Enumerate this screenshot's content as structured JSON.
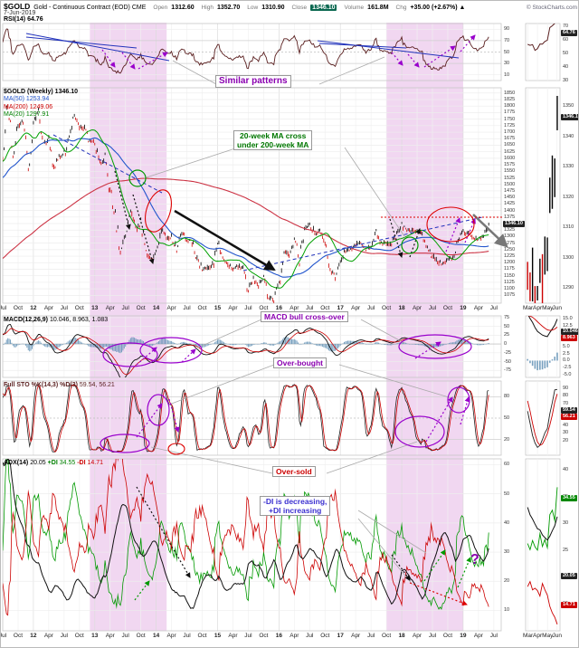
{
  "header": {
    "symbol": "$GOLD",
    "name": "Gold - Continuous Contract (EOD) CME",
    "date": "7-Jun-2019",
    "open_label": "Open",
    "open": "1312.60",
    "high_label": "High",
    "high": "1352.70",
    "low_label": "Low",
    "low": "1310.90",
    "close_label": "Close",
    "close": "1346.10",
    "volume_label": "Volume",
    "volume": "161.8M",
    "chg_label": "Chg",
    "chg": "+35.00 (+2.67%) ▲",
    "copyright": "© StockCharts.com"
  },
  "legends": {
    "rsi_label": "RSI(14)",
    "rsi_value": "64.76",
    "price_main_label": "$GOLD (Weekly)",
    "price_main_value": "1346.10",
    "ma50_label": "MA(50)",
    "ma50_value": "1253.94",
    "ma200_label": "MA(200)",
    "ma200_value": "1249.06",
    "ma20_label": "MA(20)",
    "ma20_value": "1297.91",
    "macd_label": "MACD(12,26,9)",
    "macd_value": "10.046, 8.963, 1.083",
    "stoch_label": "Full STO %K(14,3) %D(3)",
    "stoch_value": "59.54, 56.21",
    "adx_label": "ADX(14)",
    "adx_value": "20.05",
    "pdi_label": "+DI",
    "pdi_value": "34.55",
    "mdi_label": "-DI",
    "mdi_value": "14.71"
  },
  "annotations": {
    "similar_patterns": {
      "text": "Similar patterns",
      "color": "#8a00b0"
    },
    "ma_cross": {
      "line1": "20-week MA cross",
      "line2": "under 200-week MA",
      "color": "#007700"
    },
    "macd_cross": {
      "text": "MACD bull cross-over",
      "color": "#8a00b0"
    },
    "overbought": {
      "text": "Over-bought",
      "color": "#8a00b0"
    },
    "oversold": {
      "text": "Over-sold",
      "color": "#cc0000"
    },
    "di_note": {
      "line1": "-DI is decreasing,",
      "line2": "+DI increasing",
      "color": "#3a2fd0"
    },
    "question_mark": {
      "text": "?",
      "color": "#8a00b0"
    }
  },
  "chart_data": {
    "type": "ohlc",
    "title": "$GOLD Gold - Continuous Contract (EOD) CME, Weekly",
    "x_start": "2011-07",
    "x_end": "2019-06",
    "price": {
      "monthly_closes": [
        1628,
        1828,
        1622,
        1720,
        1746,
        1566,
        1740,
        1776,
        1662,
        1664,
        1562,
        1604,
        1615,
        1691,
        1771,
        1719,
        1715,
        1664,
        1660,
        1576,
        1595,
        1472,
        1386,
        1234,
        1312,
        1395,
        1327,
        1350,
        1253,
        1205,
        1251,
        1326,
        1295,
        1295,
        1250,
        1315,
        1282,
        1287,
        1211,
        1173,
        1183,
        1184,
        1283,
        1213,
        1187,
        1180,
        1190,
        1172,
        1095,
        1134,
        1114,
        1141,
        1065,
        1060,
        1118,
        1234,
        1233,
        1290,
        1212,
        1322,
        1351,
        1311,
        1317,
        1273,
        1178,
        1152,
        1211,
        1248,
        1247,
        1268,
        1275,
        1242,
        1269,
        1316,
        1280,
        1271,
        1275,
        1303,
        1345,
        1318,
        1325,
        1315,
        1305,
        1253,
        1223,
        1206,
        1191,
        1215,
        1220,
        1282,
        1321,
        1313,
        1292,
        1286,
        1305,
        1346.1
      ],
      "last_close": 1346.1,
      "ylim": [
        1045,
        1870
      ],
      "ytick_step": 25,
      "ma": [
        {
          "period": 20,
          "color": "#00a000",
          "last": 1297.91
        },
        {
          "period": 50,
          "color": "#2255cc",
          "last": 1253.94
        },
        {
          "period": 200,
          "color": "#cc3344",
          "last": 1249.06
        }
      ]
    },
    "rsi": {
      "period": 14,
      "last": 64.76,
      "ylim": [
        0,
        100
      ],
      "yticks": [
        90,
        70,
        50,
        30,
        10
      ]
    },
    "macd": {
      "params": [
        12,
        26,
        9
      ],
      "last": [
        10.046,
        8.963,
        1.083
      ],
      "ylim": [
        -95,
        80
      ],
      "yticks": [
        75,
        50,
        25,
        0,
        -25,
        -50,
        -75
      ]
    },
    "stoch": {
      "params": "%K(14,3) %D(3)",
      "last": [
        59.54,
        56.21
      ],
      "ylim": [
        -2,
        102
      ],
      "yticks": [
        80,
        50,
        20
      ]
    },
    "adx": {
      "period": 14,
      "last": {
        "adx": 20.05,
        "pdi": 34.55,
        "mdi": 14.71
      },
      "ylim": [
        3,
        62
      ],
      "yticks": [
        60,
        50,
        40,
        30,
        20,
        10
      ]
    },
    "bands": [
      {
        "from": 2012.92,
        "to": 2014.17
      },
      {
        "from": 2017.75,
        "to": 2019.0
      }
    ],
    "x_ticks": [
      {
        "t": 2011.5,
        "label": "Jul"
      },
      {
        "t": 2011.75,
        "label": "Oct"
      },
      {
        "t": 2012,
        "label": "12"
      },
      {
        "t": 2012.25,
        "label": "Apr"
      },
      {
        "t": 2012.5,
        "label": "Jul"
      },
      {
        "t": 2012.75,
        "label": "Oct"
      },
      {
        "t": 2013,
        "label": "13"
      },
      {
        "t": 2013.25,
        "label": "Apr"
      },
      {
        "t": 2013.5,
        "label": "Jul"
      },
      {
        "t": 2013.75,
        "label": "Oct"
      },
      {
        "t": 2014,
        "label": "14"
      },
      {
        "t": 2014.25,
        "label": "Apr"
      },
      {
        "t": 2014.5,
        "label": "Jul"
      },
      {
        "t": 2014.75,
        "label": "Oct"
      },
      {
        "t": 2015,
        "label": "15"
      },
      {
        "t": 2015.25,
        "label": "Apr"
      },
      {
        "t": 2015.5,
        "label": "Jul"
      },
      {
        "t": 2015.75,
        "label": "Oct"
      },
      {
        "t": 2016,
        "label": "16"
      },
      {
        "t": 2016.25,
        "label": "Apr"
      },
      {
        "t": 2016.5,
        "label": "Jul"
      },
      {
        "t": 2016.75,
        "label": "Oct"
      },
      {
        "t": 2017,
        "label": "17"
      },
      {
        "t": 2017.25,
        "label": "Apr"
      },
      {
        "t": 2017.5,
        "label": "Jul"
      },
      {
        "t": 2017.75,
        "label": "Oct"
      },
      {
        "t": 2018,
        "label": "18"
      },
      {
        "t": 2018.25,
        "label": "Apr"
      },
      {
        "t": 2018.5,
        "label": "Jul"
      },
      {
        "t": 2018.75,
        "label": "Oct"
      },
      {
        "t": 2019,
        "label": "19"
      },
      {
        "t": 2019.25,
        "label": "Apr"
      },
      {
        "t": 2019.5,
        "label": "Jul"
      }
    ],
    "mini": {
      "x_ticks": [
        {
          "t": 2019.17,
          "label": "Mar"
        },
        {
          "t": 2019.25,
          "label": "Apr"
        },
        {
          "t": 2019.335,
          "label": "May"
        },
        {
          "t": 2019.415,
          "label": "Jun"
        }
      ],
      "price_ticks": [
        1350,
        1340,
        1330,
        1320,
        1310,
        1300,
        1290
      ],
      "rsi_ticks": [
        70,
        60,
        50,
        40,
        30
      ],
      "macd_ticks": [
        15.0,
        12.5,
        10.0,
        7.5,
        5.0,
        2.5,
        0.0,
        -2.5,
        -5.0
      ],
      "stoch_ticks": [
        90,
        80,
        70,
        60,
        50,
        40,
        30,
        20
      ],
      "adx_ticks": [
        40,
        35,
        30,
        25,
        20,
        15
      ],
      "price_ylim": [
        1285,
        1356
      ],
      "rsi_ylim": [
        30,
        72
      ],
      "macd_ylim": [
        -6,
        16
      ],
      "stoch_ylim": [
        0,
        100
      ],
      "adx_ylim": [
        10,
        42
      ],
      "badges": {
        "price": [
          {
            "v": 1346.1,
            "text": "1346.10",
            "bg": "#222222"
          }
        ],
        "rsi": [
          {
            "v": 64.76,
            "text": "64.76",
            "bg": "#222222"
          }
        ],
        "macd": [
          {
            "v": 10.046,
            "text": "10.046",
            "bg": "#222222"
          },
          {
            "v": 8.963,
            "text": "8.963",
            "bg": "#cc0000"
          }
        ],
        "stoch": [
          {
            "v": 59.54,
            "text": "59.54",
            "bg": "#222222"
          },
          {
            "v": 56.21,
            "text": "56.21",
            "bg": "#cc0000"
          }
        ],
        "adx": [
          {
            "v": 34.55,
            "text": "34.55",
            "bg": "#008800"
          },
          {
            "v": 20.05,
            "text": "20.05",
            "bg": "#222222"
          },
          {
            "v": 14.71,
            "text": "14.71",
            "bg": "#cc0000"
          }
        ]
      }
    }
  }
}
